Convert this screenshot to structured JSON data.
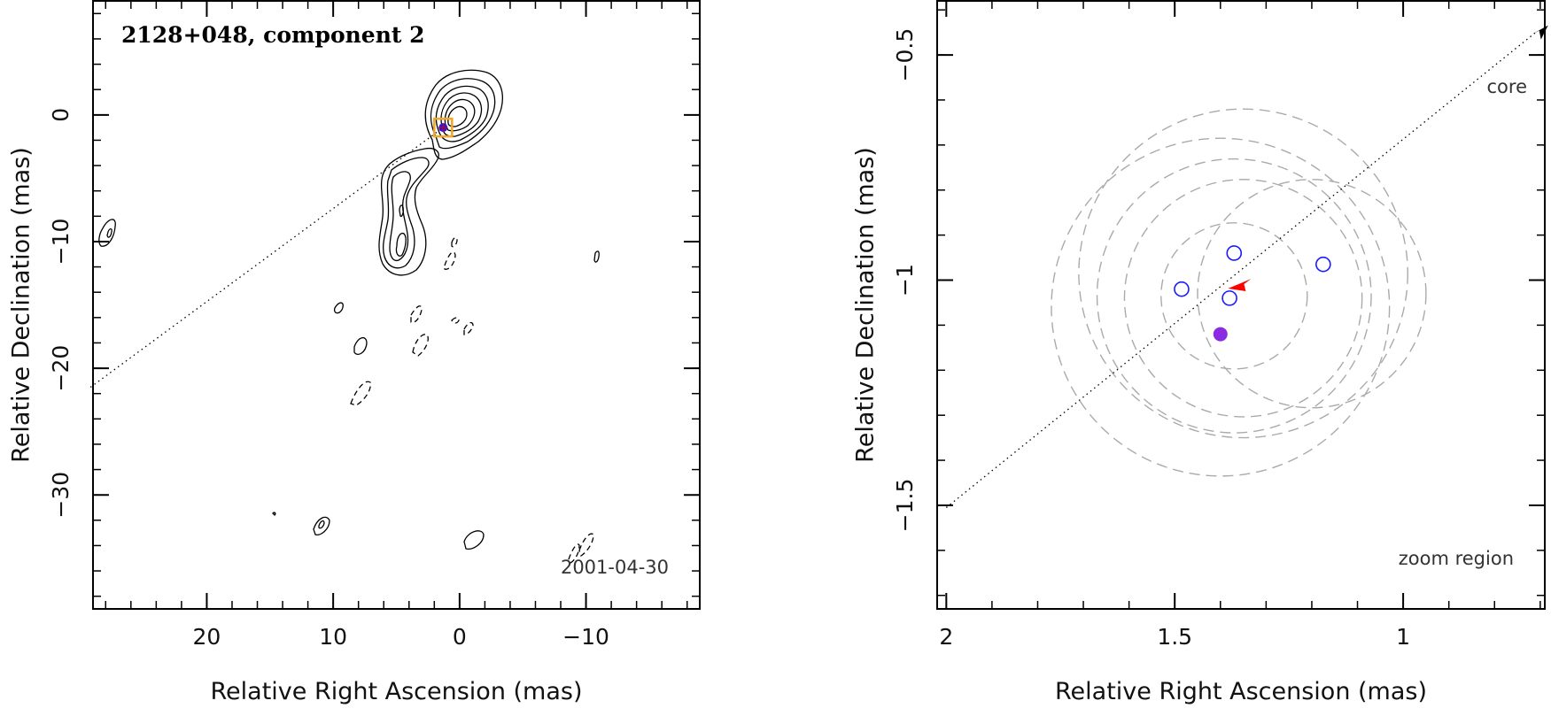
{
  "chart_data": [
    {
      "type": "contour",
      "title": "2128+048, component 2",
      "date": "2001-04-30",
      "xlabel": "Relative Right Ascension (mas)",
      "ylabel": "Relative Declination (mas)",
      "xlim": [
        29,
        -19
      ],
      "ylim": [
        -39,
        9
      ],
      "x_ticks": [
        20,
        10,
        0,
        -10
      ],
      "x_tick_labels": [
        "20",
        "10",
        "0",
        "−10"
      ],
      "y_ticks": [
        0,
        -10,
        -20,
        -30
      ],
      "y_tick_labels": [
        "0",
        "−10",
        "−20",
        "−30"
      ],
      "zoom_box_center": [
        1.3,
        -1.0
      ],
      "core_direction_line": {
        "from": [
          29.2,
          -21.5
        ],
        "to": [
          1.3,
          -1.0
        ]
      },
      "contour_peaks": [
        {
          "x": 0.2,
          "y": -1.5,
          "note": "core"
        },
        {
          "x": 4.5,
          "y": -7.5
        },
        {
          "x": 4.5,
          "y": -11.0
        },
        {
          "x": 27.5,
          "y": -9.5
        }
      ],
      "colors": {
        "zoom_box": "#f5a623",
        "marker": "#1a1aff",
        "cross": "#cc0000",
        "contour": "#000000",
        "dotted": "#000000"
      }
    },
    {
      "type": "scatter",
      "annotation_core": "core",
      "annotation_zoom": "zoom region",
      "xlabel": "Relative Right Ascension (mas)",
      "ylabel": "Relative Declination (mas)",
      "xlim": [
        2.02,
        0.69
      ],
      "ylim": [
        -1.73,
        -0.38
      ],
      "x_ticks": [
        2,
        1.5,
        1
      ],
      "x_tick_labels": [
        "2",
        "1.5",
        "1"
      ],
      "y_ticks": [
        -0.5,
        -1,
        -1.5
      ],
      "y_tick_labels": [
        "−0.5",
        "−1",
        "−1.5"
      ],
      "open_points": [
        {
          "x": 1.485,
          "y": -1.02
        },
        {
          "x": 1.37,
          "y": -0.94
        },
        {
          "x": 1.38,
          "y": -1.04
        },
        {
          "x": 1.175,
          "y": -0.965
        }
      ],
      "filled_points": [
        {
          "x": 1.4,
          "y": -1.12
        }
      ],
      "red_arrow": {
        "x": 1.36,
        "y": -1.005
      },
      "core_line": {
        "from": [
          2.0,
          -1.505
        ],
        "to": [
          0.71,
          -0.45
        ]
      },
      "error_circles": [
        {
          "cx": 1.4,
          "cy": -1.06,
          "r": 0.37
        },
        {
          "cx": 1.35,
          "cy": -0.985,
          "r": 0.36
        },
        {
          "cx": 1.35,
          "cy": -1.04,
          "r": 0.26
        },
        {
          "cx": 1.37,
          "cy": -1.035,
          "r": 0.3
        },
        {
          "cx": 1.2,
          "cy": -1.03,
          "r": 0.25
        },
        {
          "cx": 1.37,
          "cy": -1.035,
          "r": 0.16
        }
      ],
      "colors": {
        "open_point": "#1a1aff",
        "filled_point": "#8a2be2",
        "arrow": "#ff0000",
        "circle": "#aaaaaa",
        "dotted": "#000000"
      }
    }
  ]
}
